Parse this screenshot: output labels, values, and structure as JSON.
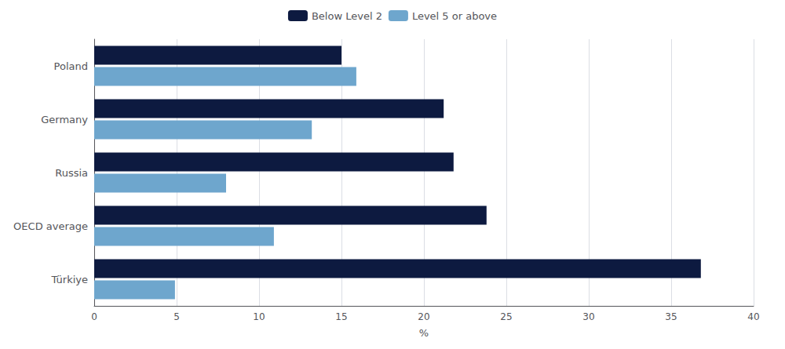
{
  "chart_data": {
    "type": "bar",
    "orientation": "horizontal",
    "categories": [
      "Poland",
      "Germany",
      "Russia",
      "OECD average",
      "Türkiye"
    ],
    "series": [
      {
        "name": "Below Level 2",
        "color": "#0d1a40",
        "values": [
          15.0,
          21.2,
          21.8,
          23.8,
          36.8
        ]
      },
      {
        "name": "Level 5 or above",
        "color": "#6ea6cd",
        "values": [
          15.9,
          13.2,
          8.0,
          10.9,
          4.9
        ]
      }
    ],
    "xlabel": "%",
    "xlim": [
      0,
      40
    ],
    "xticks": [
      0,
      5,
      10,
      15,
      20,
      25,
      30,
      35,
      40
    ],
    "grid": true,
    "legend": "top"
  }
}
